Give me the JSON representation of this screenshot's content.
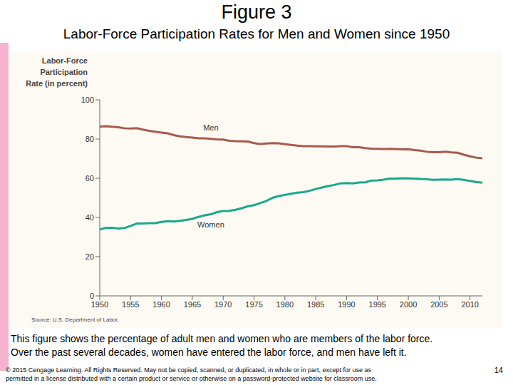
{
  "chart_data": {
    "type": "line",
    "title": "Figure 3",
    "subtitle": "Labor-Force Participation Rates for Men and Women since 1950",
    "y_label": [
      "Labor-Force",
      "Participation",
      "Rate (in percent)"
    ],
    "source": "Source: U.S. Department of Labor.",
    "caption": [
      "This figure shows the percentage of adult men and women who are members of the labor force.",
      "Over the past several decades, women have entered the labor force, and men have left it."
    ],
    "footer": [
      "© 2015 Cengage Learning. All Rights Reserved. May not be copied, scanned, or duplicated, in whole or in part, except for use as",
      "permitted in a license distributed with a certain product or service or otherwise on a password-protected website for classroom use."
    ],
    "page": 14,
    "x": [
      1950,
      1951,
      1952,
      1953,
      1954,
      1955,
      1956,
      1957,
      1958,
      1959,
      1960,
      1961,
      1962,
      1963,
      1964,
      1965,
      1966,
      1967,
      1968,
      1969,
      1970,
      1971,
      1972,
      1973,
      1974,
      1975,
      1976,
      1977,
      1978,
      1979,
      1980,
      1981,
      1982,
      1983,
      1984,
      1985,
      1986,
      1987,
      1988,
      1989,
      1990,
      1991,
      1992,
      1993,
      1994,
      1995,
      1996,
      1997,
      1998,
      1999,
      2000,
      2001,
      2002,
      2003,
      2004,
      2005,
      2006,
      2007,
      2008,
      2009,
      2010,
      2011,
      2012
    ],
    "series": [
      {
        "name": "Men",
        "color": "#a85a4e",
        "values": [
          86.4,
          86.5,
          86.3,
          86.0,
          85.5,
          85.4,
          85.5,
          84.8,
          84.2,
          83.7,
          83.3,
          82.9,
          82.0,
          81.4,
          81.0,
          80.7,
          80.4,
          80.4,
          80.1,
          79.8,
          79.7,
          79.1,
          78.9,
          78.8,
          78.7,
          77.9,
          77.5,
          77.7,
          77.9,
          77.8,
          77.4,
          77.0,
          76.6,
          76.4,
          76.4,
          76.3,
          76.3,
          76.2,
          76.2,
          76.4,
          76.4,
          75.8,
          75.8,
          75.4,
          75.1,
          75.0,
          74.9,
          75.0,
          74.9,
          74.7,
          74.8,
          74.4,
          74.1,
          73.5,
          73.3,
          73.3,
          73.5,
          73.2,
          73.0,
          72.0,
          71.2,
          70.5,
          70.2
        ]
      },
      {
        "name": "Women",
        "color": "#1aa88a",
        "values": [
          33.9,
          34.6,
          34.7,
          34.4,
          34.6,
          35.7,
          36.9,
          36.9,
          37.1,
          37.1,
          37.7,
          38.1,
          37.9,
          38.3,
          38.7,
          39.3,
          40.3,
          41.1,
          41.6,
          42.7,
          43.3,
          43.4,
          43.9,
          44.7,
          45.7,
          46.3,
          47.3,
          48.4,
          50.0,
          50.9,
          51.5,
          52.1,
          52.6,
          52.9,
          53.6,
          54.5,
          55.3,
          56.0,
          56.6,
          57.4,
          57.5,
          57.4,
          57.8,
          57.9,
          58.8,
          58.9,
          59.3,
          59.8,
          59.8,
          60.0,
          59.9,
          59.8,
          59.6,
          59.5,
          59.2,
          59.3,
          59.4,
          59.3,
          59.5,
          59.2,
          58.6,
          58.1,
          57.7
        ]
      }
    ],
    "xlim": [
      1950,
      2012
    ],
    "xticks": [
      1950,
      1955,
      1960,
      1965,
      1970,
      1975,
      1980,
      1985,
      1990,
      1995,
      2000,
      2005,
      2010
    ],
    "ylim": [
      0,
      100
    ],
    "yticks": [
      0,
      20,
      40,
      60,
      80,
      100
    ],
    "grid": false
  }
}
